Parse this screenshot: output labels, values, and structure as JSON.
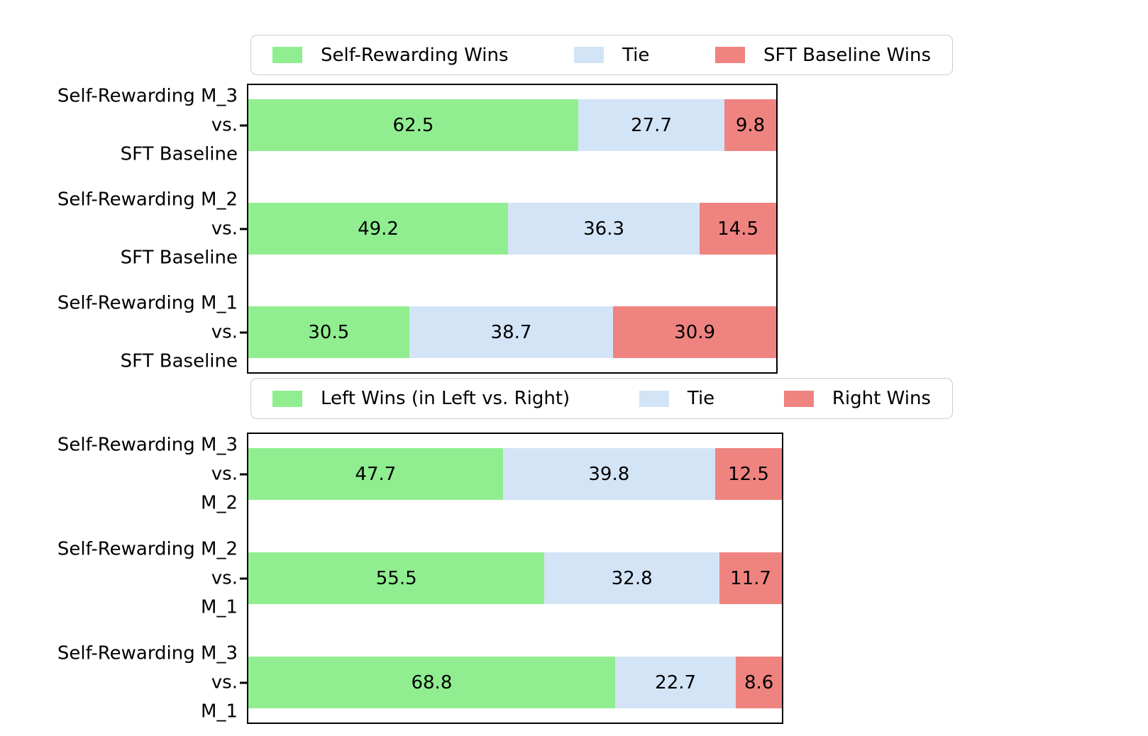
{
  "figure": {
    "background": "#ffffff"
  },
  "colors": {
    "win_green": "#90EE90",
    "tie_blue": "#D4E4F7",
    "loss_red": "#EF8380",
    "frame": "#000000",
    "legend_border": "#CCCCCC",
    "text": "#000000"
  },
  "chart_data": [
    {
      "type": "bar",
      "orientation": "horizontal",
      "stacked": true,
      "grid": false,
      "legend_position": "top",
      "xlim": [
        0,
        100
      ],
      "legend": [
        "Self-Rewarding Wins",
        "Tie",
        "SFT Baseline Wins"
      ],
      "series_colors": [
        "#90EE90",
        "#D4E4F7",
        "#EF8380"
      ],
      "categories": [
        "Self-Rewarding M_3 vs. SFT Baseline",
        "Self-Rewarding M_2 vs. SFT Baseline",
        "Self-Rewarding M_1 vs. SFT Baseline"
      ],
      "category_lines": [
        [
          "Self-Rewarding M_3",
          "vs.",
          "SFT Baseline"
        ],
        [
          "Self-Rewarding M_2",
          "vs.",
          "SFT Baseline"
        ],
        [
          "Self-Rewarding M_1",
          "vs.",
          "SFT Baseline"
        ]
      ],
      "series": [
        {
          "name": "Self-Rewarding Wins",
          "values": [
            62.5,
            49.2,
            30.5
          ]
        },
        {
          "name": "Tie",
          "values": [
            27.7,
            36.3,
            38.7
          ]
        },
        {
          "name": "SFT Baseline Wins",
          "values": [
            9.8,
            14.5,
            30.9
          ]
        }
      ]
    },
    {
      "type": "bar",
      "orientation": "horizontal",
      "stacked": true,
      "grid": false,
      "legend_position": "top",
      "xlim": [
        0,
        100
      ],
      "legend": [
        "Left Wins (in Left vs. Right)",
        "Tie",
        "Right Wins"
      ],
      "series_colors": [
        "#90EE90",
        "#D4E4F7",
        "#EF8380"
      ],
      "categories": [
        "Self-Rewarding M_3 vs. M_2",
        "Self-Rewarding M_2 vs. M_1",
        "Self-Rewarding M_3 vs. M_1"
      ],
      "category_lines": [
        [
          "Self-Rewarding M_3",
          "vs.",
          "M_2"
        ],
        [
          "Self-Rewarding M_2",
          "vs.",
          "M_1"
        ],
        [
          "Self-Rewarding M_3",
          "vs.",
          "M_1"
        ]
      ],
      "series": [
        {
          "name": "Left Wins (in Left vs. Right)",
          "values": [
            47.7,
            55.5,
            68.8
          ]
        },
        {
          "name": "Tie",
          "values": [
            39.8,
            32.8,
            22.7
          ]
        },
        {
          "name": "Right Wins",
          "values": [
            12.5,
            11.7,
            8.6
          ]
        }
      ]
    }
  ]
}
